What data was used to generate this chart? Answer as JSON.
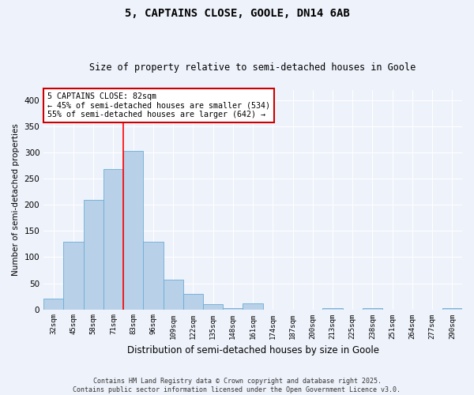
{
  "title": "5, CAPTAINS CLOSE, GOOLE, DN14 6AB",
  "subtitle": "Size of property relative to semi-detached houses in Goole",
  "xlabel": "Distribution of semi-detached houses by size in Goole",
  "ylabel": "Number of semi-detached properties",
  "categories": [
    "32sqm",
    "45sqm",
    "58sqm",
    "71sqm",
    "83sqm",
    "96sqm",
    "109sqm",
    "122sqm",
    "135sqm",
    "148sqm",
    "161sqm",
    "174sqm",
    "187sqm",
    "200sqm",
    "213sqm",
    "225sqm",
    "238sqm",
    "251sqm",
    "264sqm",
    "277sqm",
    "290sqm"
  ],
  "values": [
    20,
    130,
    210,
    268,
    304,
    130,
    57,
    30,
    10,
    2,
    12,
    0,
    0,
    0,
    2,
    0,
    2,
    0,
    0,
    0,
    2
  ],
  "bar_color": "#b8d0e8",
  "bar_edge_color": "#6aaed6",
  "background_color": "#eef2fb",
  "grid_color": "#ffffff",
  "ylim": [
    0,
    420
  ],
  "yticks": [
    0,
    50,
    100,
    150,
    200,
    250,
    300,
    350,
    400
  ],
  "annotation_title": "5 CAPTAINS CLOSE: 82sqm",
  "annotation_line1": "← 45% of semi-detached houses are smaller (534)",
  "annotation_line2": "55% of semi-detached houses are larger (642) →",
  "annotation_box_color": "#ffffff",
  "annotation_box_edge": "#cc0000",
  "red_line_index": 4,
  "footer1": "Contains HM Land Registry data © Crown copyright and database right 2025.",
  "footer2": "Contains public sector information licensed under the Open Government Licence v3.0."
}
